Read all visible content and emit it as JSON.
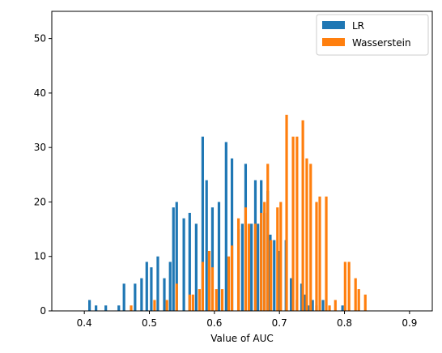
{
  "chart_data": {
    "type": "bar",
    "title": "",
    "xlabel": "Value of AUC",
    "ylabel": "",
    "xlim": [
      0.35,
      0.935
    ],
    "ylim": [
      0,
      55
    ],
    "xticks": [
      "0.4",
      "0.5",
      "0.6",
      "0.7",
      "0.8",
      "0.9"
    ],
    "yticks": [
      "0",
      "10",
      "20",
      "30",
      "40",
      "50"
    ],
    "grid": false,
    "legend_position": "top-right",
    "series": [
      {
        "name": "LR",
        "color": "#1f77b4",
        "x": [
          0.408,
          0.418,
          0.433,
          0.453,
          0.461,
          0.478,
          0.488,
          0.496,
          0.503,
          0.513,
          0.523,
          0.532,
          0.537,
          0.542,
          0.553,
          0.562,
          0.572,
          0.582,
          0.588,
          0.597,
          0.607,
          0.618,
          0.627,
          0.637,
          0.643,
          0.648,
          0.657,
          0.663,
          0.667,
          0.672,
          0.677,
          0.682,
          0.686,
          0.692,
          0.7,
          0.71,
          0.718,
          0.727,
          0.734,
          0.739,
          0.745,
          0.751,
          0.757,
          0.767,
          0.797
        ],
        "values": [
          2,
          1,
          1,
          1,
          5,
          5,
          6,
          9,
          8,
          10,
          6,
          9,
          19,
          20,
          17,
          18,
          16,
          32,
          24,
          19,
          20,
          31,
          28,
          15,
          16,
          27,
          16,
          24,
          16,
          24,
          18,
          22,
          14,
          13,
          11,
          13,
          6,
          2,
          5,
          3,
          1,
          2,
          1,
          2,
          1
        ]
      },
      {
        "name": "Wasserstein",
        "color": "#ff7f0e",
        "x": [
          0.472,
          0.508,
          0.527,
          0.542,
          0.562,
          0.567,
          0.577,
          0.582,
          0.592,
          0.597,
          0.603,
          0.612,
          0.622,
          0.627,
          0.637,
          0.648,
          0.653,
          0.663,
          0.672,
          0.677,
          0.682,
          0.687,
          0.697,
          0.702,
          0.711,
          0.721,
          0.727,
          0.736,
          0.742,
          0.748,
          0.757,
          0.762,
          0.772,
          0.777,
          0.786,
          0.801,
          0.807,
          0.817,
          0.822,
          0.832
        ],
        "values": [
          1,
          2,
          2,
          5,
          3,
          3,
          4,
          9,
          11,
          8,
          4,
          4,
          10,
          12,
          17,
          19,
          16,
          16,
          18,
          20,
          27,
          13,
          19,
          20,
          36,
          32,
          32,
          35,
          28,
          27,
          20,
          21,
          21,
          1,
          2,
          9,
          9,
          6,
          4,
          3
        ]
      }
    ]
  }
}
